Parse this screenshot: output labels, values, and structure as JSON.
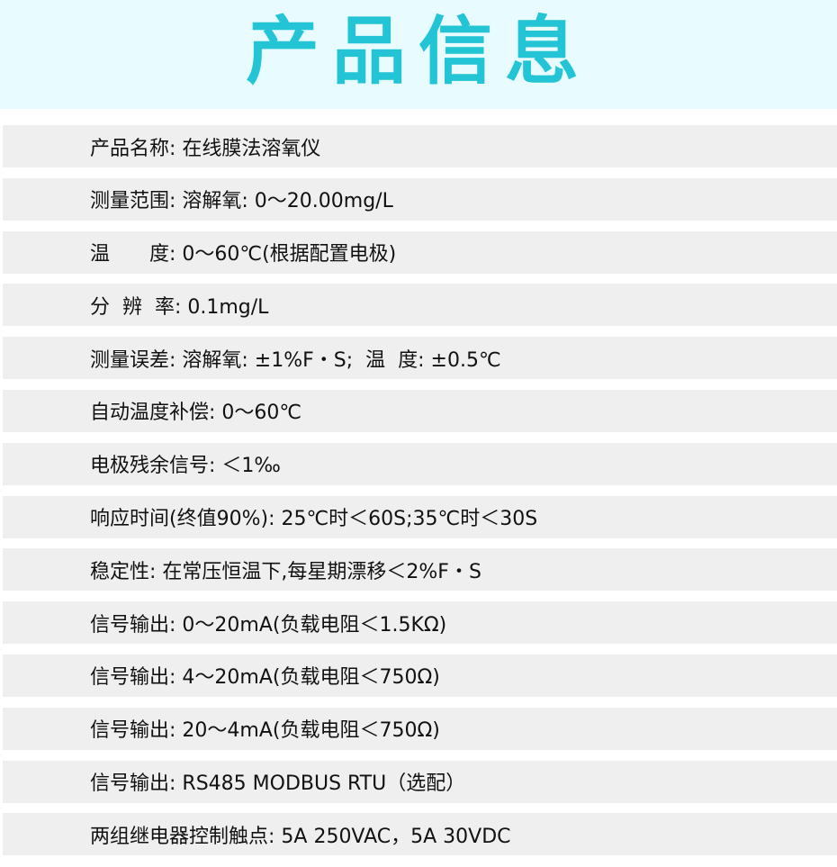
{
  "header": {
    "title": "产品信息",
    "title_color": "#22c4d6",
    "background": "#e8fcff"
  },
  "specs": [
    "产品名称: 在线膜法溶氧仪",
    "测量范围: 溶解氧: 0～20.00mg/L",
    "温　　度: 0～60℃(根据配置电极)",
    "分  辨  率: 0.1mg/L",
    "测量误差: 溶解氧: ±1%F・S;  温  度: ±0.5℃",
    "自动温度补偿: 0～60℃",
    "电极残余信号: ＜1‰",
    "响应时间(终值90%): 25℃时＜60S;35℃时＜30S",
    "稳定性: 在常压恒温下,每星期漂移＜2%F・S",
    "信号输出: 0～20mA(负载电阻＜1.5KΩ)",
    "信号输出: 4～20mA(负载电阻＜750Ω)",
    "信号输出: 20～4mA(负载电阻＜750Ω)",
    "信号输出: RS485 MODBUS RTU（选配）",
    "两组继电器控制触点: 5A 250VAC，5A 30VDC"
  ]
}
